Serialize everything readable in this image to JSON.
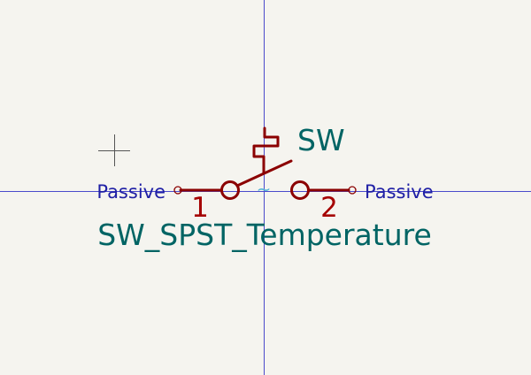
{
  "canvas": {
    "background": "#f5f4ef",
    "crosshair_color": "#3a3acb",
    "symbol_color": "#8b0000",
    "pin_type_color": "#1f1fa5",
    "field_color": "#006464"
  },
  "symbol": {
    "reference": "SW",
    "value": "SW_SPST_Temperature",
    "pin_left": {
      "number": "1",
      "type": "Passive"
    },
    "pin_right": {
      "number": "2",
      "type": "Passive"
    },
    "anchor_marker": "~"
  },
  "icons": {
    "cursor": "crosshair-cursor-icon"
  }
}
